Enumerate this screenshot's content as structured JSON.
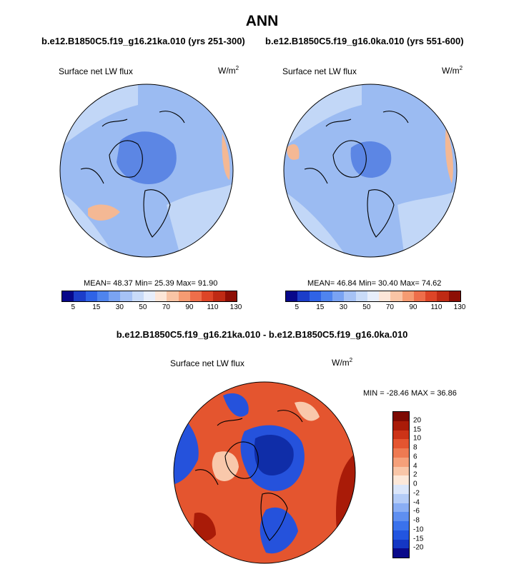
{
  "figure": {
    "title": "ANN",
    "left_case": "b.e12.B1850C5.f19_g16.21ka.010 (yrs 251-300)",
    "right_case": "b.e12.B1850C5.f19_g16.0ka.010 (yrs 551-600)",
    "diff_title": "b.e12.B1850C5.f19_g16.21ka.010 - b.e12.B1850C5.f19_g16.0ka.010"
  },
  "panels": {
    "left": {
      "variable": "Surface net LW flux",
      "units": "W/m",
      "units_exp": "2",
      "mean_text": "MEAN=  48.37  Min=  25.39  Max=  91.90"
    },
    "right": {
      "variable": "Surface net LW flux",
      "units": "W/m",
      "units_exp": "2",
      "mean_text": "MEAN=  46.84  Min=  30.40  Max=  74.62"
    },
    "diff": {
      "variable": "Surface net LW flux",
      "units": "W/m",
      "units_exp": "2",
      "minmax_text": "MIN = -28.46 MAX =  36.86"
    }
  },
  "colors": {
    "abs_scale": [
      "#08088a",
      "#1c3dc9",
      "#2f63e6",
      "#4f84ee",
      "#7aa3f2",
      "#a6c2f5",
      "#c9dbf8",
      "#e7eefb",
      "#fde6d8",
      "#f9c4a5",
      "#f59b72",
      "#ee6e4a",
      "#dd4527",
      "#bf2a14",
      "#8d0e05"
    ],
    "diff_scale": [
      "#0a0a8a",
      "#1437c4",
      "#2255e0",
      "#3a72ec",
      "#5f8ff0",
      "#8aaef4",
      "#b4ccf7",
      "#dbe6fa",
      "#fde8d9",
      "#f9c6a8",
      "#f5a07a",
      "#ee7a52",
      "#e45530",
      "#cc3317",
      "#a91b08",
      "#7d0a02"
    ],
    "ocean_mid": "#9bbbf2",
    "ocean_light": "#c2d7f7",
    "pole": "#5c86e4",
    "warm_patch": "#f4b894",
    "diff_red": "#e4552f",
    "diff_red_dark": "#a91b08",
    "diff_pale": "#f9c8ab",
    "diff_blue": "#2552dc",
    "diff_blue_dark": "#0f2da8"
  },
  "chart_data": [
    {
      "type": "heatmap",
      "title": "ANN",
      "subtitle": "b.e12.B1850C5.f19_g16.21ka.010 (yrs 251-300)",
      "variable": "Surface net LW flux",
      "units": "W/m2",
      "projection": "north polar stereographic",
      "stats": {
        "mean": 48.37,
        "min": 25.39,
        "max": 91.9
      },
      "colorbar": {
        "orientation": "horizontal",
        "tick_labels": [
          "5",
          "15",
          "30",
          "50",
          "70",
          "90",
          "110",
          "130"
        ]
      }
    },
    {
      "type": "heatmap",
      "title": "ANN",
      "subtitle": "b.e12.B1850C5.f19_g16.0ka.010 (yrs 551-600)",
      "variable": "Surface net LW flux",
      "units": "W/m2",
      "projection": "north polar stereographic",
      "stats": {
        "mean": 46.84,
        "min": 30.4,
        "max": 74.62
      },
      "colorbar": {
        "orientation": "horizontal",
        "tick_labels": [
          "5",
          "15",
          "30",
          "50",
          "70",
          "90",
          "110",
          "130"
        ]
      }
    },
    {
      "type": "heatmap",
      "title": "b.e12.B1850C5.f19_g16.21ka.010 - b.e12.B1850C5.f19_g16.0ka.010",
      "variable": "Surface net LW flux",
      "units": "W/m2",
      "projection": "north polar stereographic",
      "stats": {
        "min": -28.46,
        "max": 36.86
      },
      "colorbar": {
        "orientation": "vertical",
        "tick_labels": [
          "20",
          "15",
          "10",
          "8",
          "6",
          "4",
          "2",
          "0",
          "-2",
          "-4",
          "-6",
          "-8",
          "-10",
          "-15",
          "-20"
        ]
      }
    }
  ]
}
